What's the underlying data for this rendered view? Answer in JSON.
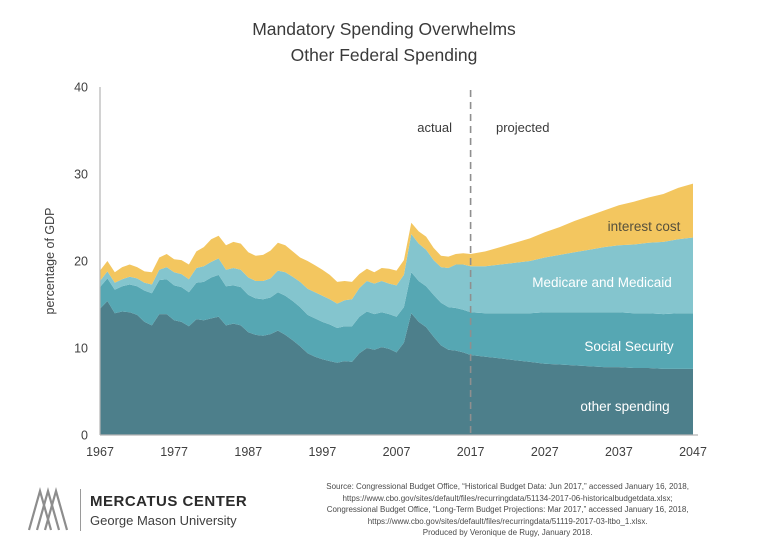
{
  "title": {
    "line1": "Mandatory Spending Overwhelms",
    "line2": "Other Federal Spending"
  },
  "axes": {
    "y_label": "percentage of GDP",
    "y_ticks": [
      0,
      10,
      20,
      30,
      40
    ],
    "x_ticks": [
      1967,
      1977,
      1987,
      1997,
      2007,
      2017,
      2027,
      2037,
      2047
    ]
  },
  "annotations": {
    "actual": "actual",
    "projected": "projected"
  },
  "series_labels": {
    "interest": "interest cost",
    "medicare": "Medicare and Medicaid",
    "social_security": "Social Security",
    "other": "other spending"
  },
  "colors": {
    "other": "#4d7f8b",
    "social_security": "#56a7b3",
    "medicare": "#84c5ce",
    "interest": "#f3c65f",
    "divider": "#8f8f8f",
    "axis": "#b5b5b5"
  },
  "chart_data": {
    "type": "area",
    "stacked": true,
    "title": "Mandatory Spending Overwhelms Other Federal Spending",
    "ylabel": "percentage of GDP",
    "ylim": [
      0,
      40
    ],
    "xlim": [
      1967,
      2047
    ],
    "divider_year": 2017,
    "legend_position": "in-plot labels",
    "grid": false,
    "x": [
      1967,
      1968,
      1969,
      1970,
      1971,
      1972,
      1973,
      1974,
      1975,
      1976,
      1977,
      1978,
      1979,
      1980,
      1981,
      1982,
      1983,
      1984,
      1985,
      1986,
      1987,
      1988,
      1989,
      1990,
      1991,
      1992,
      1993,
      1994,
      1995,
      1996,
      1997,
      1998,
      1999,
      2000,
      2001,
      2002,
      2003,
      2004,
      2005,
      2006,
      2007,
      2008,
      2009,
      2010,
      2011,
      2012,
      2013,
      2014,
      2015,
      2016,
      2017,
      2019,
      2021,
      2023,
      2025,
      2027,
      2029,
      2031,
      2033,
      2035,
      2037,
      2039,
      2041,
      2043,
      2045,
      2047
    ],
    "series": [
      {
        "name": "other spending",
        "values": [
          14.5,
          15.4,
          14.0,
          14.2,
          14.1,
          13.8,
          13.0,
          12.6,
          13.9,
          13.9,
          13.2,
          13.0,
          12.5,
          13.3,
          13.2,
          13.4,
          13.6,
          12.6,
          12.8,
          12.6,
          11.8,
          11.5,
          11.4,
          11.6,
          12.0,
          11.5,
          10.9,
          10.2,
          9.4,
          9.0,
          8.7,
          8.5,
          8.3,
          8.5,
          8.4,
          9.4,
          10.0,
          9.8,
          10.1,
          9.9,
          9.5,
          10.6,
          14.0,
          13.0,
          12.4,
          11.3,
          10.3,
          9.8,
          9.7,
          9.5,
          9.2,
          9.0,
          8.8,
          8.6,
          8.4,
          8.2,
          8.1,
          8.0,
          7.9,
          7.8,
          7.8,
          7.7,
          7.7,
          7.6,
          7.6,
          7.6
        ]
      },
      {
        "name": "Social Security",
        "values": [
          2.5,
          2.6,
          2.7,
          2.9,
          3.2,
          3.3,
          3.6,
          3.7,
          3.9,
          4.0,
          4.0,
          4.0,
          3.9,
          4.2,
          4.4,
          4.7,
          4.8,
          4.5,
          4.4,
          4.4,
          4.3,
          4.2,
          4.2,
          4.2,
          4.4,
          4.5,
          4.5,
          4.5,
          4.4,
          4.4,
          4.3,
          4.2,
          4.0,
          4.0,
          4.1,
          4.2,
          4.2,
          4.1,
          4.0,
          4.0,
          4.1,
          4.1,
          4.7,
          4.7,
          4.7,
          4.8,
          4.9,
          4.9,
          4.9,
          4.9,
          4.9,
          5.0,
          5.2,
          5.4,
          5.6,
          5.9,
          6.0,
          6.1,
          6.2,
          6.3,
          6.3,
          6.3,
          6.3,
          6.3,
          6.4,
          6.4
        ]
      },
      {
        "name": "Medicare and Medicaid",
        "values": [
          0.7,
          0.8,
          0.8,
          0.8,
          0.9,
          0.9,
          0.9,
          1.0,
          1.2,
          1.4,
          1.5,
          1.5,
          1.5,
          1.7,
          1.8,
          1.8,
          1.9,
          1.9,
          2.0,
          2.0,
          2.0,
          2.0,
          2.1,
          2.2,
          2.5,
          2.7,
          2.8,
          2.9,
          3.0,
          3.0,
          3.0,
          2.9,
          2.8,
          3.0,
          3.1,
          3.3,
          3.5,
          3.5,
          3.6,
          3.5,
          3.6,
          3.7,
          4.4,
          4.3,
          4.2,
          4.0,
          4.1,
          4.5,
          5.0,
          5.2,
          5.3,
          5.4,
          5.6,
          5.8,
          6.0,
          6.3,
          6.6,
          6.9,
          7.2,
          7.5,
          7.7,
          7.9,
          8.1,
          8.3,
          8.5,
          8.7
        ]
      },
      {
        "name": "interest cost",
        "values": [
          1.2,
          1.2,
          1.2,
          1.4,
          1.4,
          1.3,
          1.3,
          1.4,
          1.4,
          1.5,
          1.5,
          1.6,
          1.7,
          1.9,
          2.2,
          2.6,
          2.6,
          2.8,
          3.0,
          3.0,
          2.9,
          2.9,
          3.0,
          3.2,
          3.2,
          3.1,
          2.9,
          2.8,
          3.2,
          3.1,
          3.0,
          2.8,
          2.5,
          2.2,
          2.0,
          1.6,
          1.4,
          1.3,
          1.5,
          1.7,
          1.7,
          1.7,
          1.3,
          1.4,
          1.5,
          1.4,
          1.3,
          1.3,
          1.2,
          1.3,
          1.4,
          1.7,
          2.0,
          2.3,
          2.6,
          2.9,
          3.2,
          3.6,
          3.9,
          4.2,
          4.6,
          4.9,
          5.2,
          5.5,
          5.9,
          6.2
        ]
      }
    ]
  },
  "footer": {
    "logo_line1": "MERCATUS CENTER",
    "logo_line2": "George Mason University",
    "source_lines": [
      "Source: Congressional Budget Office, “Historical Budget Data: Jun 2017,” accessed January 16, 2018,",
      "https://www.cbo.gov/sites/default/files/recurringdata/51134-2017-06-historicalbudgetdata.xlsx;",
      "Congressional Budget Office, “Long-Term Budget Projections: Mar 2017,” accessed January 16, 2018,",
      "https://www.cbo.gov/sites/default/files/recurringdata/51119-2017-03-ltbo_1.xlsx.",
      "Produced by Veronique de Rugy, January 2018."
    ]
  }
}
